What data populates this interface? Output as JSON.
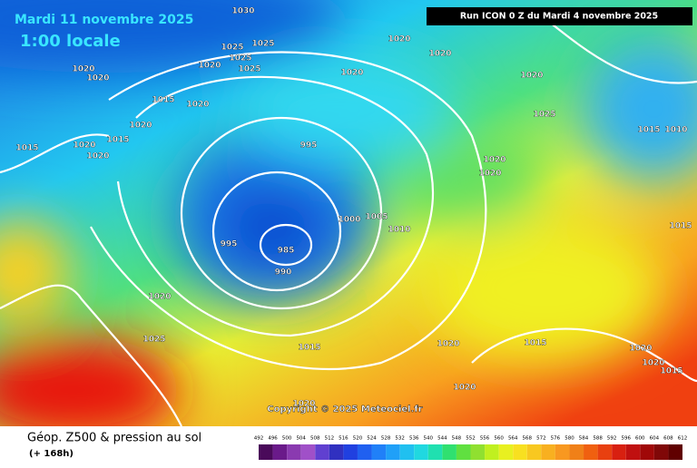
{
  "header": {
    "date": "Mardi 11 novembre 2025",
    "time": "1:00 locale",
    "run": "Run ICON 0 Z du Mardi 4 novembre 2025",
    "copyright": "Copyright © 2025 Meteociel.fr"
  },
  "footer": {
    "title": "Géop. Z500 & pression au sol",
    "lead": "(+ 168h)"
  },
  "colorbar": {
    "ticks": [
      492,
      496,
      500,
      504,
      508,
      512,
      516,
      520,
      524,
      528,
      532,
      536,
      540,
      544,
      548,
      552,
      556,
      560,
      564,
      568,
      572,
      576,
      580,
      584,
      588,
      592,
      596,
      600,
      604,
      608,
      612
    ]
  },
  "isobar_labels": [
    1030,
    1020,
    1020,
    1020,
    1020,
    1025,
    1025,
    1025,
    1020,
    1025,
    1020,
    1020,
    1015,
    1020,
    1020,
    1015,
    1015,
    1020,
    1020,
    995,
    1025,
    1015,
    1010,
    1020,
    1020,
    1000,
    1005,
    1010,
    995,
    985,
    990,
    1015,
    1020,
    1025,
    1015,
    1020,
    1015,
    1020,
    1020,
    1015,
    1020,
    1020
  ]
}
